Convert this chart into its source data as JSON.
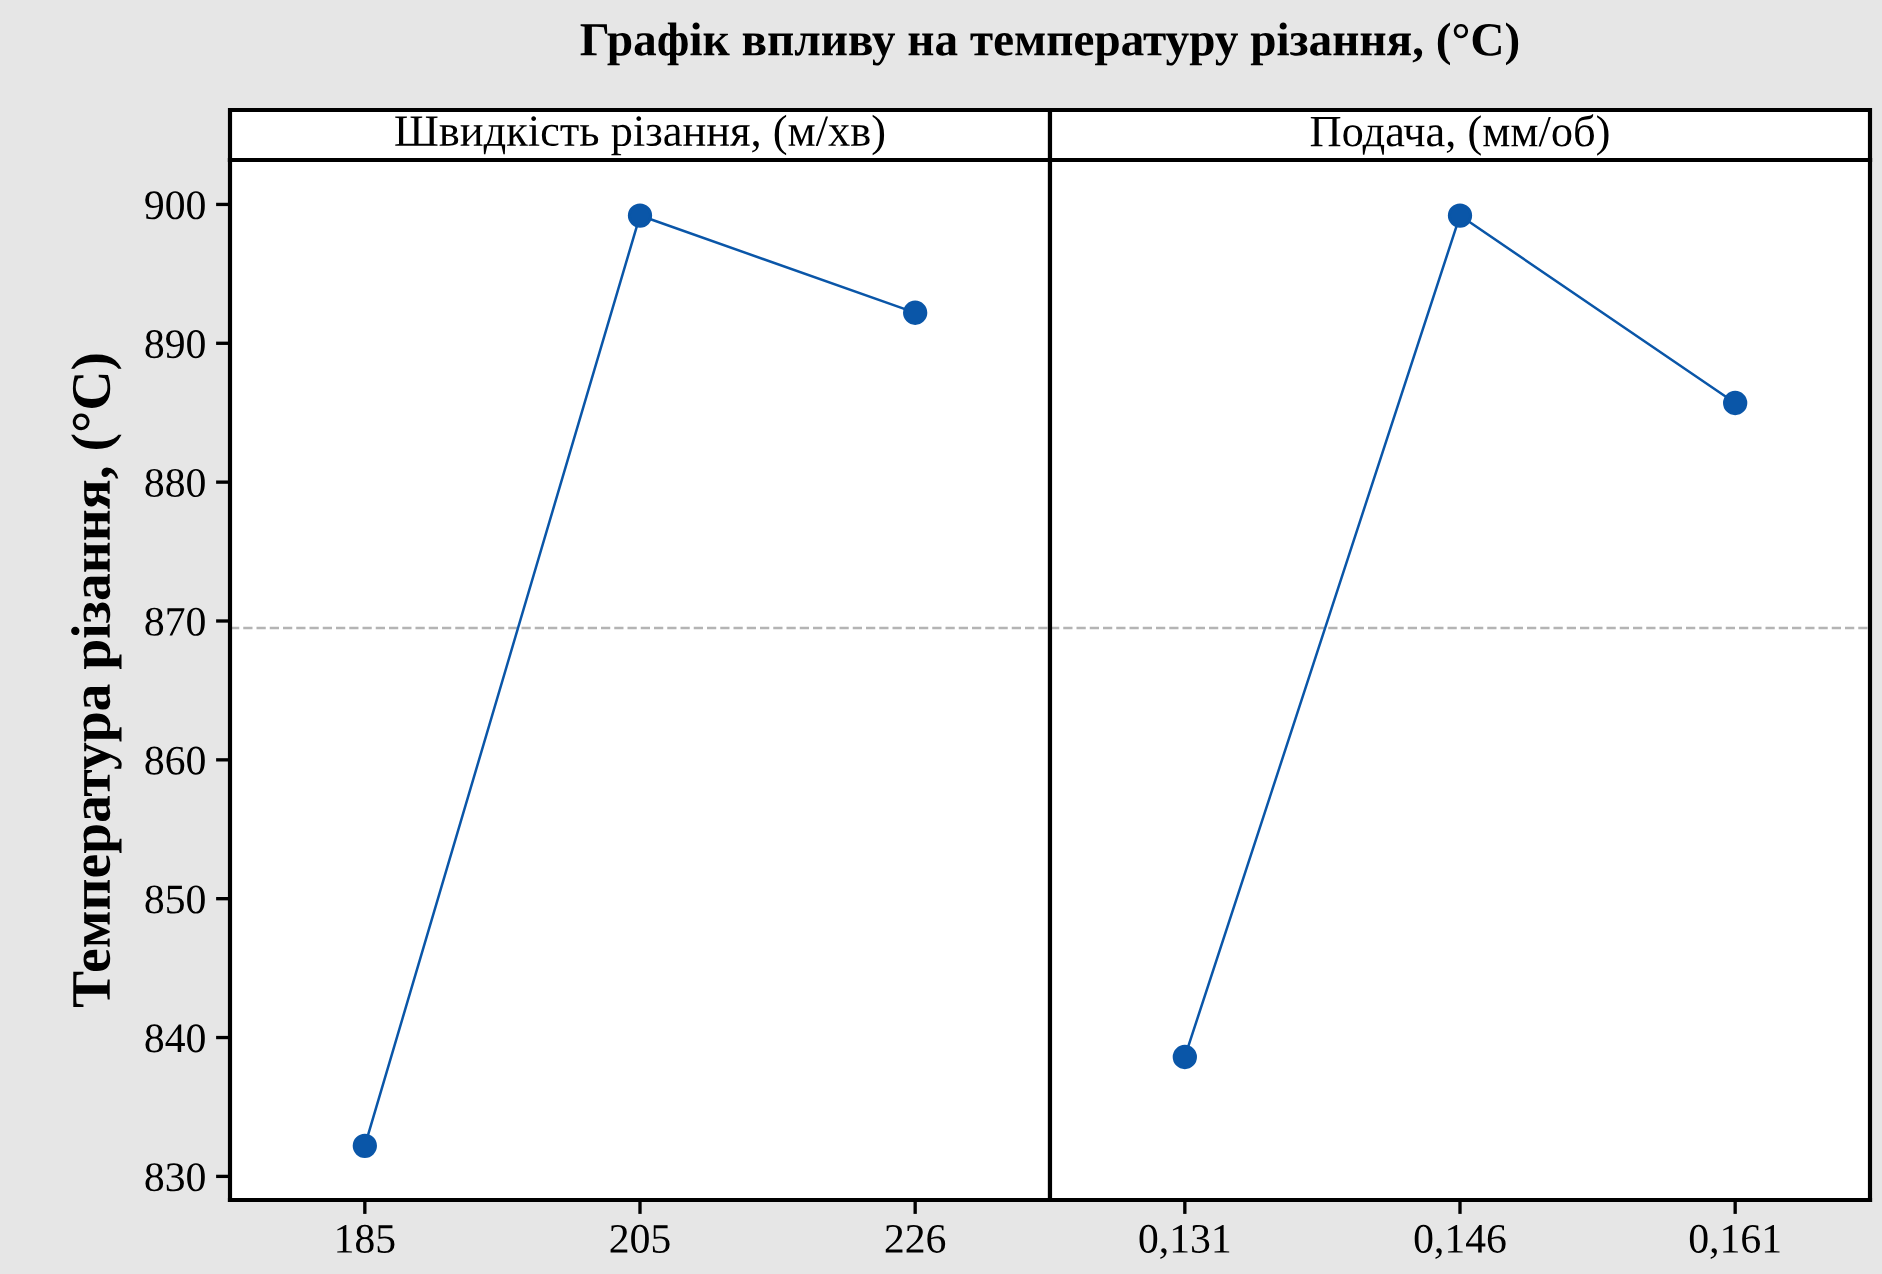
{
  "chart_data": [
    {
      "type": "line",
      "title": "Графік впливу на температуру різання, (°C)",
      "subtitle": "Швидкість різання, (м/хв)",
      "ylabel": "Температура різання, (°C)",
      "categories": [
        "185",
        "205",
        "226"
      ],
      "series": [
        {
          "color": "#0a56a8",
          "values": [
            832.2,
            899.2,
            892.2
          ]
        }
      ],
      "ylim": [
        828.3,
        903.2
      ],
      "yticks": [
        830,
        840,
        850,
        860,
        870,
        880,
        890,
        900
      ],
      "marker": "circle",
      "line_style": "solid",
      "grid": false,
      "legend": false,
      "ref_lines": [
        {
          "axis": "y",
          "value": 869.5,
          "color": "#b4b4b4",
          "line_style": "dashed"
        }
      ]
    },
    {
      "type": "line",
      "subtitle": "Подача, (мм/об)",
      "categories": [
        "0,131",
        "0,146",
        "0,161"
      ],
      "series": [
        {
          "color": "#0a56a8",
          "values": [
            838.6,
            899.2,
            885.7
          ]
        }
      ],
      "ylim": [
        828.3,
        903.2
      ],
      "yticks": [
        830,
        840,
        850,
        860,
        870,
        880,
        890,
        900
      ],
      "tick_labels": "x",
      "marker": "circle",
      "line_style": "solid",
      "grid": false,
      "legend": false,
      "ref_lines": [
        {
          "axis": "y",
          "value": 869.5,
          "color": "#b4b4b4",
          "line_style": "dashed"
        }
      ]
    }
  ]
}
